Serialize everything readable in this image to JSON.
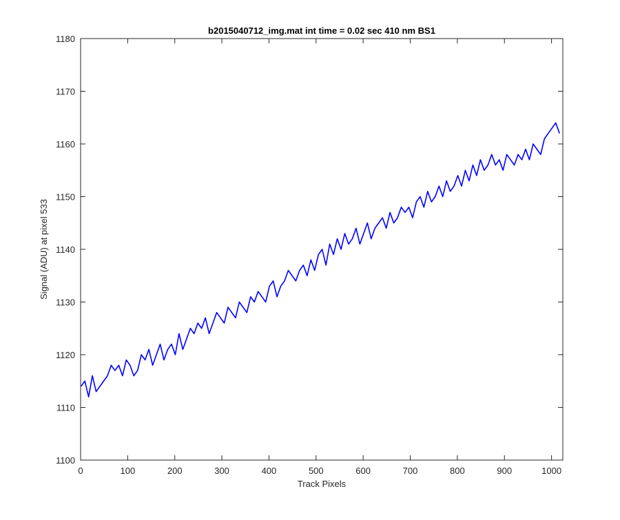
{
  "chart_data": {
    "type": "line",
    "title": "b2015040712_img.mat int time = 0.02 sec  410 nm BS1",
    "xlabel": "Track Pixels",
    "ylabel": "Signal (ADU) at pixel 533",
    "xlim": [
      0,
      1024
    ],
    "ylim": [
      1100,
      1180
    ],
    "xticks": [
      0,
      100,
      200,
      300,
      400,
      500,
      600,
      700,
      800,
      900,
      1000
    ],
    "yticks": [
      1100,
      1110,
      1120,
      1130,
      1140,
      1150,
      1160,
      1170,
      1180
    ],
    "grid": false,
    "legend": "none",
    "line_color": "#0000ff",
    "series": [
      {
        "x_start": 1,
        "x_step": 8,
        "values": [
          1114,
          1115,
          1112,
          1116,
          1113,
          1114,
          1115,
          1116,
          1118,
          1117,
          1118,
          1116,
          1119,
          1118,
          1116,
          1117,
          1120,
          1119,
          1121,
          1118,
          1120,
          1122,
          1119,
          1121,
          1122,
          1120,
          1124,
          1121,
          1123,
          1125,
          1124,
          1126,
          1125,
          1127,
          1124,
          1126,
          1128,
          1127,
          1126,
          1129,
          1128,
          1127,
          1130,
          1129,
          1128,
          1131,
          1130,
          1132,
          1131,
          1130,
          1133,
          1134,
          1131,
          1133,
          1134,
          1136,
          1135,
          1134,
          1136,
          1137,
          1135,
          1138,
          1136,
          1139,
          1140,
          1137,
          1141,
          1139,
          1142,
          1140,
          1143,
          1141,
          1142,
          1144,
          1141,
          1143,
          1145,
          1142,
          1144,
          1145,
          1146,
          1144,
          1147,
          1145,
          1146,
          1148,
          1147,
          1148,
          1146,
          1149,
          1150,
          1148,
          1151,
          1149,
          1150,
          1152,
          1150,
          1153,
          1151,
          1152,
          1154,
          1152,
          1155,
          1153,
          1156,
          1154,
          1157,
          1155,
          1156,
          1158,
          1156,
          1157,
          1155,
          1158,
          1157,
          1156,
          1158,
          1157,
          1159,
          1157,
          1160,
          1159,
          1158,
          1161,
          1162,
          1163,
          1164,
          1162
        ]
      }
    ]
  }
}
